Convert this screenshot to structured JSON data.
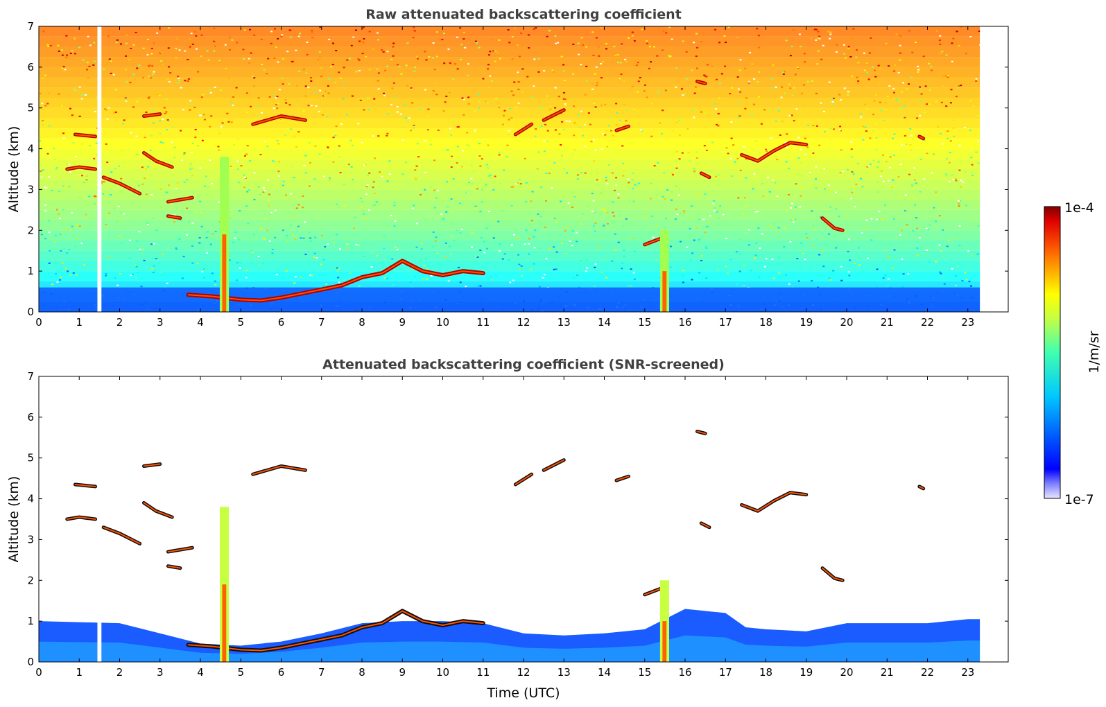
{
  "chart_data": [
    {
      "type": "heatmap",
      "title": "Raw attenuated backscattering coefficient",
      "xlabel": "",
      "ylabel": "Altitude (km)",
      "xlim": [
        0,
        24
      ],
      "ylim": [
        0,
        7
      ],
      "x_ticks": [
        0,
        1,
        2,
        3,
        4,
        5,
        6,
        7,
        8,
        9,
        10,
        11,
        12,
        13,
        14,
        15,
        16,
        17,
        18,
        19,
        20,
        21,
        22,
        23
      ],
      "y_ticks": [
        0,
        1,
        2,
        3,
        4,
        5,
        6,
        7
      ],
      "data_end_hour": 23.3,
      "data_gap_hours": [
        1.45,
        1.55
      ],
      "colorscale": "jet",
      "features": [
        {
          "kind": "boundary-layer-cloud",
          "points": [
            [
              3.7,
              0.42
            ],
            [
              4.3,
              0.38
            ],
            [
              5.0,
              0.3
            ],
            [
              5.5,
              0.28
            ],
            [
              6.0,
              0.35
            ],
            [
              6.5,
              0.45
            ],
            [
              7.0,
              0.55
            ],
            [
              7.5,
              0.65
            ],
            [
              8.0,
              0.85
            ],
            [
              8.5,
              0.95
            ],
            [
              9.0,
              1.25
            ],
            [
              9.5,
              1.0
            ],
            [
              10.0,
              0.9
            ],
            [
              10.5,
              1.0
            ],
            [
              11.0,
              0.95
            ]
          ]
        },
        {
          "kind": "cloud",
          "points": [
            [
              0.7,
              3.5
            ],
            [
              1.0,
              3.55
            ],
            [
              1.4,
              3.5
            ]
          ]
        },
        {
          "kind": "cloud",
          "points": [
            [
              1.6,
              3.3
            ],
            [
              2.0,
              3.15
            ],
            [
              2.5,
              2.9
            ]
          ]
        },
        {
          "kind": "cloud",
          "points": [
            [
              0.9,
              4.35
            ],
            [
              1.4,
              4.3
            ]
          ]
        },
        {
          "kind": "cloud",
          "points": [
            [
              2.6,
              4.8
            ],
            [
              3.0,
              4.85
            ]
          ]
        },
        {
          "kind": "cloud",
          "points": [
            [
              2.6,
              3.9
            ],
            [
              2.9,
              3.7
            ],
            [
              3.3,
              3.55
            ]
          ]
        },
        {
          "kind": "cloud",
          "points": [
            [
              3.2,
              2.35
            ],
            [
              3.5,
              2.3
            ]
          ]
        },
        {
          "kind": "cloud",
          "points": [
            [
              3.2,
              2.7
            ],
            [
              3.8,
              2.8
            ]
          ]
        },
        {
          "kind": "cloud",
          "points": [
            [
              5.3,
              4.6
            ],
            [
              6.0,
              4.8
            ],
            [
              6.6,
              4.7
            ]
          ]
        },
        {
          "kind": "cloud",
          "points": [
            [
              11.8,
              4.35
            ],
            [
              12.2,
              4.6
            ]
          ]
        },
        {
          "kind": "cloud",
          "points": [
            [
              12.5,
              4.7
            ],
            [
              13.0,
              4.95
            ]
          ]
        },
        {
          "kind": "cloud",
          "points": [
            [
              14.3,
              4.45
            ],
            [
              14.6,
              4.55
            ]
          ]
        },
        {
          "kind": "cloud",
          "points": [
            [
              16.3,
              5.65
            ],
            [
              16.5,
              5.6
            ]
          ]
        },
        {
          "kind": "cloud",
          "points": [
            [
              17.4,
              3.85
            ],
            [
              17.8,
              3.7
            ],
            [
              18.2,
              3.95
            ],
            [
              18.6,
              4.15
            ],
            [
              19.0,
              4.1
            ]
          ]
        },
        {
          "kind": "cloud",
          "points": [
            [
              19.4,
              2.3
            ],
            [
              19.7,
              2.05
            ],
            [
              19.9,
              2.0
            ]
          ]
        },
        {
          "kind": "cloud",
          "points": [
            [
              15.0,
              1.65
            ],
            [
              15.4,
              1.8
            ]
          ]
        },
        {
          "kind": "cloud",
          "points": [
            [
              16.4,
              3.4
            ],
            [
              16.6,
              3.3
            ]
          ]
        },
        {
          "kind": "cloud",
          "points": [
            [
              21.8,
              4.3
            ],
            [
              21.9,
              4.25
            ]
          ]
        },
        {
          "kind": "precipitation-column",
          "x": 4.6,
          "top": 3.8
        },
        {
          "kind": "precipitation-column",
          "x": 15.5,
          "top": 2.0
        }
      ]
    },
    {
      "type": "heatmap",
      "title": "Attenuated backscattering coefficient (SNR-screened)",
      "xlabel": "Time (UTC)",
      "ylabel": "Altitude (km)",
      "xlim": [
        0,
        24
      ],
      "ylim": [
        0,
        7
      ],
      "x_ticks": [
        0,
        1,
        2,
        3,
        4,
        5,
        6,
        7,
        8,
        9,
        10,
        11,
        12,
        13,
        14,
        15,
        16,
        17,
        18,
        19,
        20,
        21,
        22,
        23
      ],
      "y_ticks": [
        0,
        1,
        2,
        3,
        4,
        5,
        6,
        7
      ],
      "data_end_hour": 23.3,
      "data_gap_hours": [
        1.45,
        1.55
      ],
      "colorscale": "jet",
      "boundary_layer_top_km": [
        [
          0,
          1.0
        ],
        [
          2.0,
          0.95
        ],
        [
          3.0,
          0.7
        ],
        [
          4.0,
          0.45
        ],
        [
          5.0,
          0.4
        ],
        [
          6.0,
          0.5
        ],
        [
          7.0,
          0.7
        ],
        [
          8.0,
          0.95
        ],
        [
          9.0,
          1.0
        ],
        [
          10.0,
          1.0
        ],
        [
          11.0,
          0.95
        ],
        [
          12.0,
          0.7
        ],
        [
          13.0,
          0.65
        ],
        [
          14.0,
          0.7
        ],
        [
          15.0,
          0.8
        ],
        [
          16.0,
          1.3
        ],
        [
          17.0,
          1.2
        ],
        [
          17.5,
          0.85
        ],
        [
          18.0,
          0.8
        ],
        [
          19.0,
          0.75
        ],
        [
          20.0,
          0.95
        ],
        [
          21.0,
          0.95
        ],
        [
          22.0,
          0.95
        ],
        [
          23.0,
          1.05
        ],
        [
          23.3,
          1.05
        ]
      ]
    }
  ],
  "colorbar": {
    "label": "1/m/sr",
    "min_label": "1e-7",
    "max_label": "1e-4",
    "colormap": "jet"
  }
}
